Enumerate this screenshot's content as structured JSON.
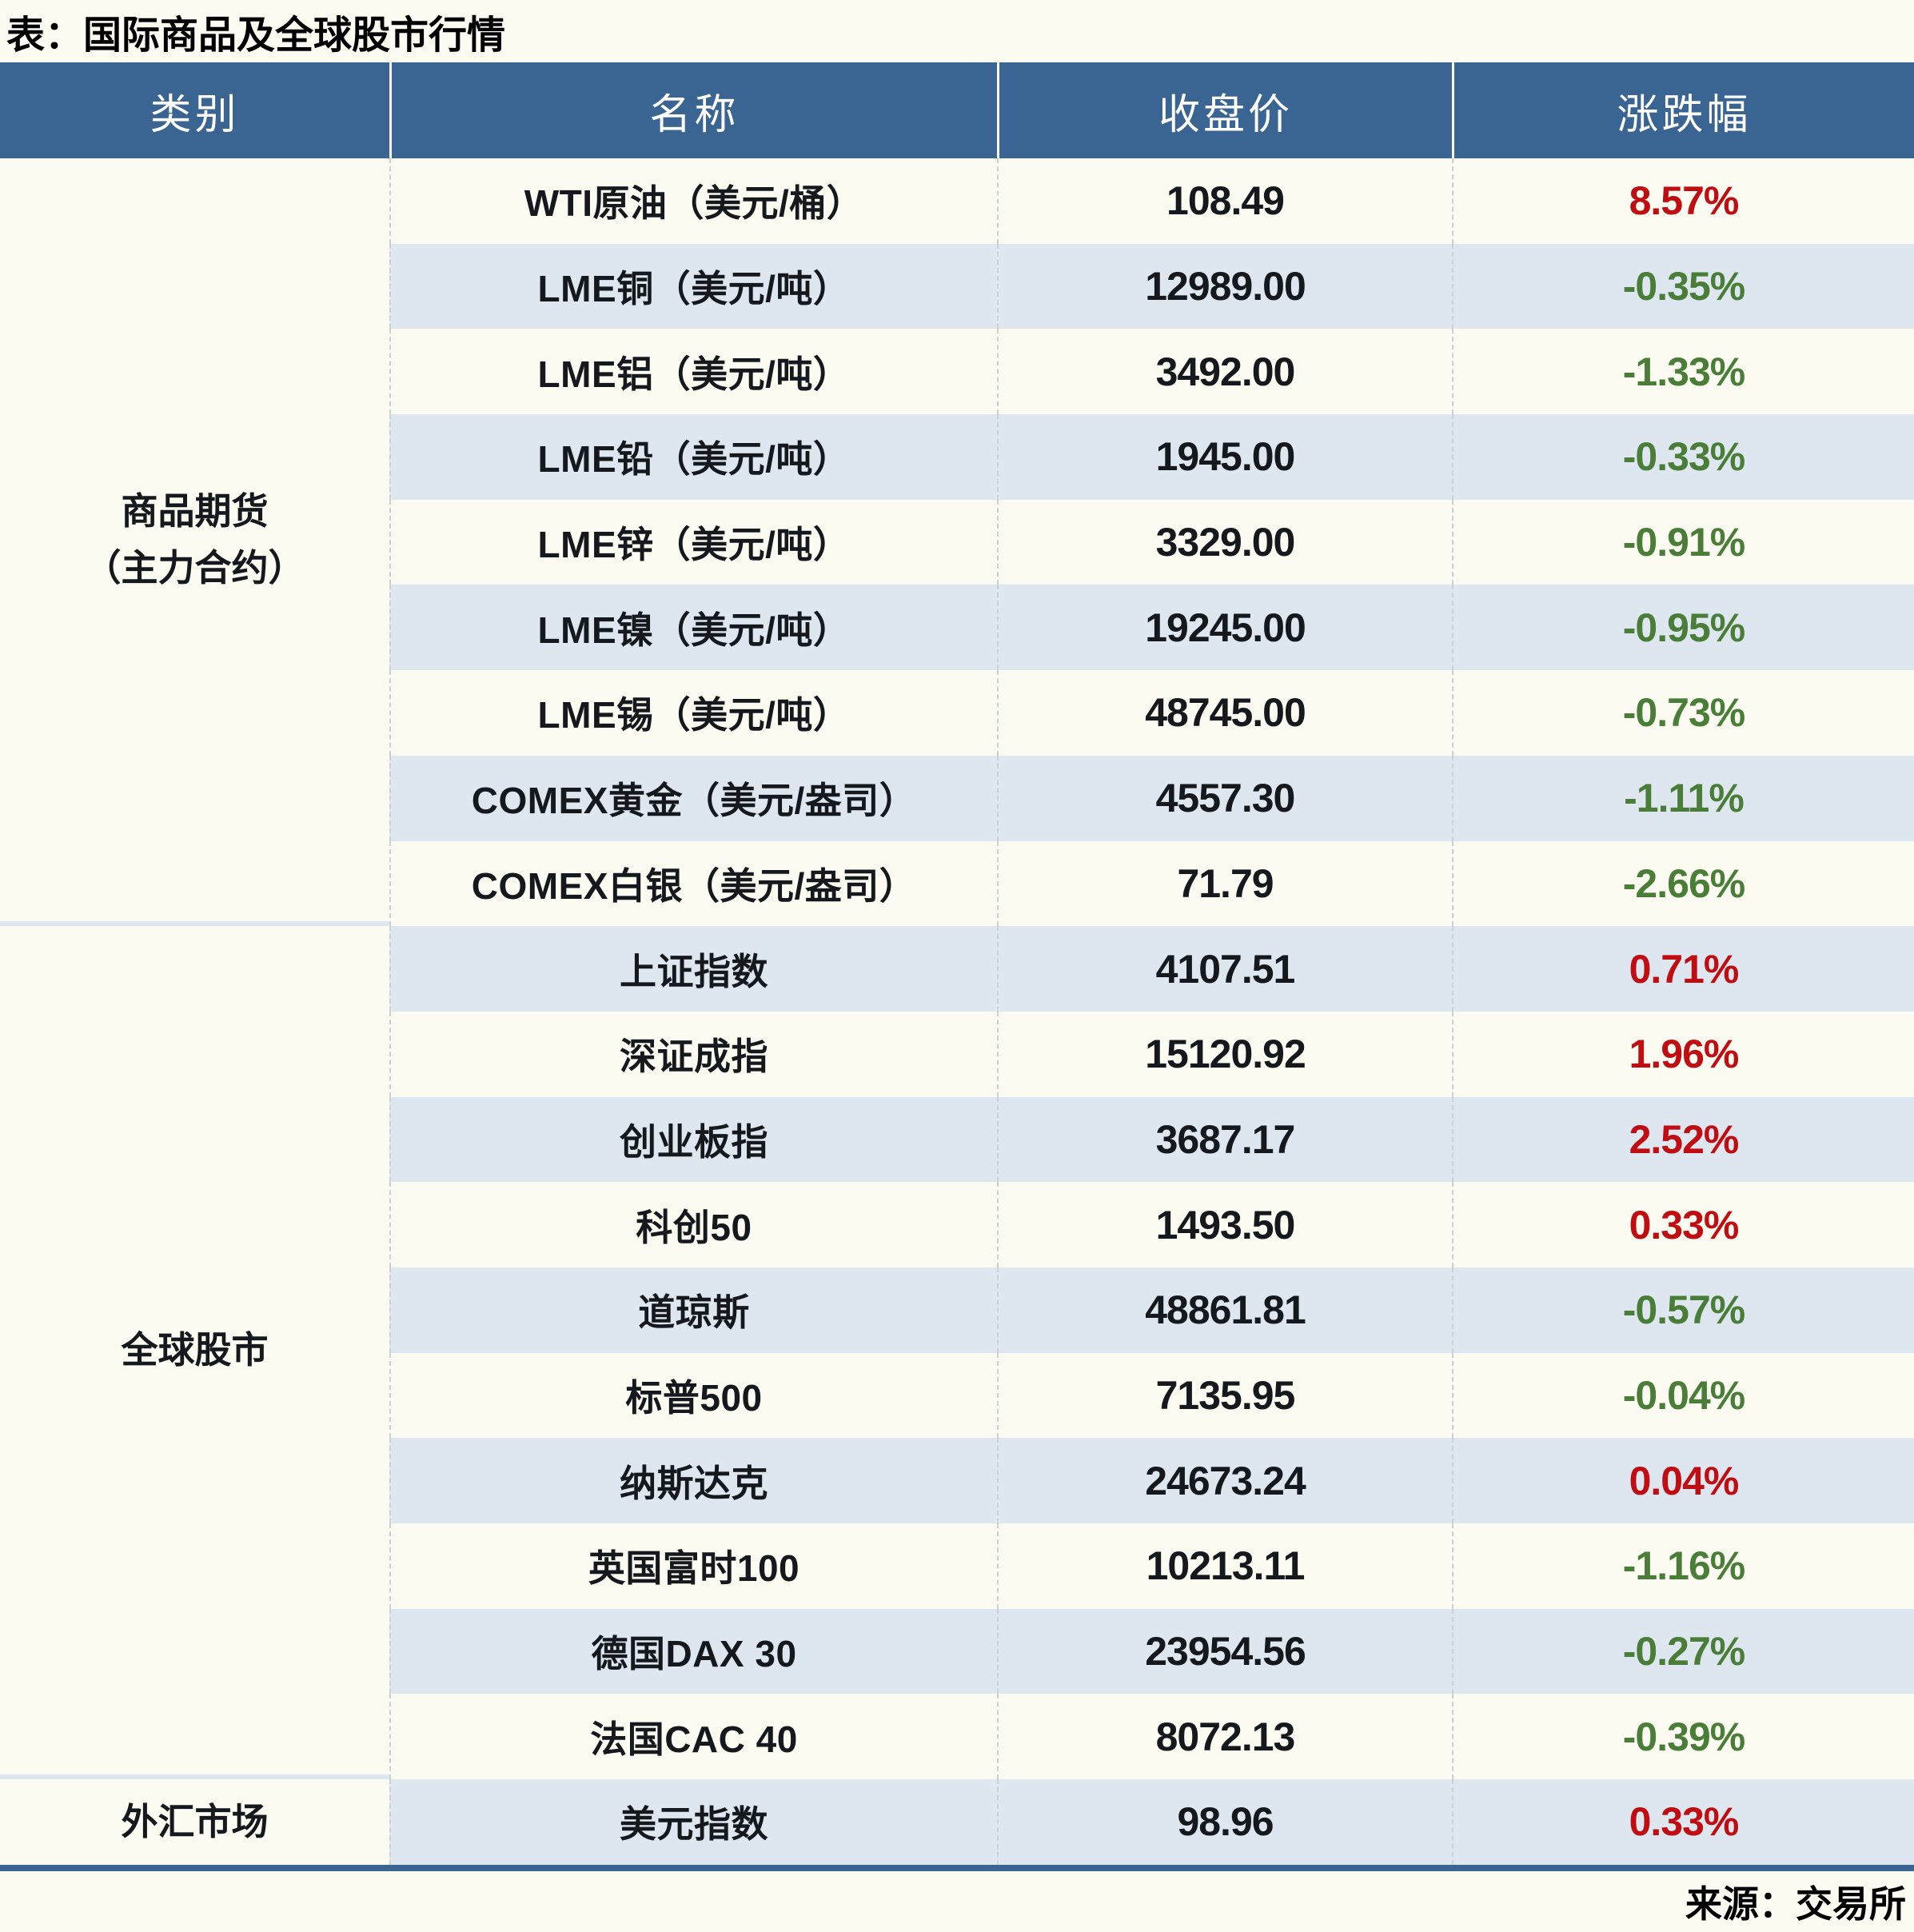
{
  "title": "表：国际商品及全球股市行情",
  "source": "来源：交易所",
  "colors": {
    "up": "#C00D11",
    "down": "#4A7E38",
    "header_bg": "#3A6491",
    "stripe": "#DEE6F0",
    "cream": "#FCFBF1"
  },
  "table": {
    "headers": [
      "类别",
      "名称",
      "收盘价",
      "涨跌幅"
    ],
    "sections": [
      {
        "category": "商品期货\n（主力合约）",
        "rows": [
          {
            "name": "WTI原油（美元/桶）",
            "close": "108.49",
            "change": "8.57%",
            "direction": "up"
          },
          {
            "name": "LME铜（美元/吨）",
            "close": "12989.00",
            "change": "-0.35%",
            "direction": "down"
          },
          {
            "name": "LME铝（美元/吨）",
            "close": "3492.00",
            "change": "-1.33%",
            "direction": "down"
          },
          {
            "name": "LME铅（美元/吨）",
            "close": "1945.00",
            "change": "-0.33%",
            "direction": "down"
          },
          {
            "name": "LME锌（美元/吨）",
            "close": "3329.00",
            "change": "-0.91%",
            "direction": "down"
          },
          {
            "name": "LME镍（美元/吨）",
            "close": "19245.00",
            "change": "-0.95%",
            "direction": "down"
          },
          {
            "name": "LME锡（美元/吨）",
            "close": "48745.00",
            "change": "-0.73%",
            "direction": "down"
          },
          {
            "name": "COMEX黄金（美元/盎司）",
            "close": "4557.30",
            "change": "-1.11%",
            "direction": "down"
          },
          {
            "name": "COMEX白银（美元/盎司）",
            "close": "71.79",
            "change": "-2.66%",
            "direction": "down"
          }
        ]
      },
      {
        "category": "全球股市",
        "rows": [
          {
            "name": "上证指数",
            "close": "4107.51",
            "change": "0.71%",
            "direction": "up"
          },
          {
            "name": "深证成指",
            "close": "15120.92",
            "change": "1.96%",
            "direction": "up"
          },
          {
            "name": "创业板指",
            "close": "3687.17",
            "change": "2.52%",
            "direction": "up"
          },
          {
            "name": "科创50",
            "close": "1493.50",
            "change": "0.33%",
            "direction": "up"
          },
          {
            "name": "道琼斯",
            "close": "48861.81",
            "change": "-0.57%",
            "direction": "down"
          },
          {
            "name": "标普500",
            "close": "7135.95",
            "change": "-0.04%",
            "direction": "down"
          },
          {
            "name": "纳斯达克",
            "close": "24673.24",
            "change": "0.04%",
            "direction": "up"
          },
          {
            "name": "英国富时100",
            "close": "10213.11",
            "change": "-1.16%",
            "direction": "down"
          },
          {
            "name": "德国DAX 30",
            "close": "23954.56",
            "change": "-0.27%",
            "direction": "down"
          },
          {
            "name": "法国CAC 40",
            "close": "8072.13",
            "change": "-0.39%",
            "direction": "down"
          }
        ]
      },
      {
        "category": "外汇市场",
        "rows": [
          {
            "name": "美元指数",
            "close": "98.96",
            "change": "0.33%",
            "direction": "up"
          }
        ]
      }
    ]
  },
  "chart_data": {
    "type": "table",
    "title": "表：国际商品及全球股市行情",
    "columns": [
      "类别",
      "名称",
      "收盘价",
      "涨跌幅"
    ],
    "rows": [
      [
        "商品期货（主力合约）",
        "WTI原油（美元/桶）",
        108.49,
        "8.57%"
      ],
      [
        "商品期货（主力合约）",
        "LME铜（美元/吨）",
        12989.0,
        "-0.35%"
      ],
      [
        "商品期货（主力合约）",
        "LME铝（美元/吨）",
        3492.0,
        "-1.33%"
      ],
      [
        "商品期货（主力合约）",
        "LME铅（美元/吨）",
        1945.0,
        "-0.33%"
      ],
      [
        "商品期货（主力合约）",
        "LME锌（美元/吨）",
        3329.0,
        "-0.91%"
      ],
      [
        "商品期货（主力合约）",
        "LME镍（美元/吨）",
        19245.0,
        "-0.95%"
      ],
      [
        "商品期货（主力合约）",
        "LME锡（美元/吨）",
        48745.0,
        "-0.73%"
      ],
      [
        "商品期货（主力合约）",
        "COMEX黄金（美元/盎司）",
        4557.3,
        "-1.11%"
      ],
      [
        "商品期货（主力合约）",
        "COMEX白银（美元/盎司）",
        71.79,
        "-2.66%"
      ],
      [
        "全球股市",
        "上证指数",
        4107.51,
        "0.71%"
      ],
      [
        "全球股市",
        "深证成指",
        15120.92,
        "1.96%"
      ],
      [
        "全球股市",
        "创业板指",
        3687.17,
        "2.52%"
      ],
      [
        "全球股市",
        "科创50",
        1493.5,
        "0.33%"
      ],
      [
        "全球股市",
        "道琼斯",
        48861.81,
        "-0.57%"
      ],
      [
        "全球股市",
        "标普500",
        7135.95,
        "-0.04%"
      ],
      [
        "全球股市",
        "纳斯达克",
        24673.24,
        "0.04%"
      ],
      [
        "全球股市",
        "英国富时100",
        10213.11,
        "-1.16%"
      ],
      [
        "全球股市",
        "德国DAX 30",
        23954.56,
        "-0.27%"
      ],
      [
        "全球股市",
        "法国CAC 40",
        8072.13,
        "-0.39%"
      ],
      [
        "外汇市场",
        "美元指数",
        98.96,
        "0.33%"
      ]
    ],
    "source": "来源：交易所",
    "layout": {
      "positive_change_color": "#C00D11",
      "negative_change_color": "#4A7E38",
      "header_background": "#3A6491",
      "zebra_stripe_color": "#DEE6F0"
    }
  }
}
